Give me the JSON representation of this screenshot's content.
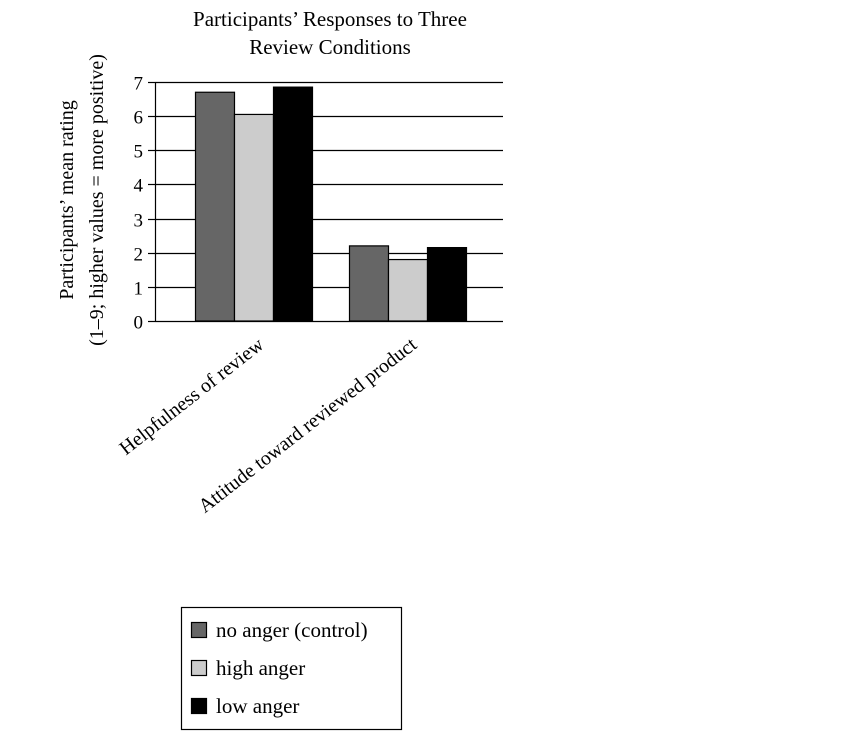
{
  "chart_data": {
    "type": "bar",
    "title_lines": [
      "Participants’ Responses to Three",
      "Review Conditions"
    ],
    "ylabel_lines": [
      "Participants’ mean rating",
      "(1–9; higher values = more positive)"
    ],
    "xlabel": "",
    "ylim": [
      0,
      7
    ],
    "yticks": [
      0,
      1,
      2,
      3,
      4,
      5,
      6,
      7
    ],
    "grid": true,
    "categories": [
      "Helpfulness of review",
      "Attitude toward reviewed product"
    ],
    "series": [
      {
        "name": "no anger (control)",
        "values": [
          6.7,
          2.2
        ],
        "color": "#666666"
      },
      {
        "name": "high anger",
        "values": [
          6.05,
          1.8
        ],
        "color": "#cccccc"
      },
      {
        "name": "low anger",
        "values": [
          6.85,
          2.15
        ],
        "color": "#000000"
      }
    ],
    "legend_position": "bottom"
  }
}
